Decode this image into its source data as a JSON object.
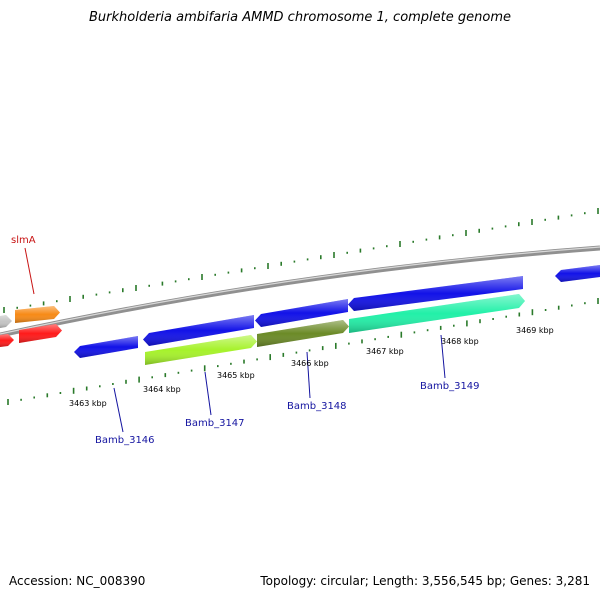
{
  "title": "Burkholderia ambifaria AMMD chromosome 1, complete genome",
  "footer": {
    "accession": "Accession: NC_008390",
    "summary": "Topology: circular; Length: 3,556,545 bp; Genes: 3,281"
  },
  "colors": {
    "forward_gene": "#1212e8",
    "reverse_gene": "#1212e8",
    "Bamb_3147": "#a6f22b",
    "Bamb_3148": "#6b8a27",
    "Bamb_3149": "#22f0a8",
    "slmA_pair_top": "#f78a16",
    "slmA_pair_bottom": "#ff1a1a",
    "grey_gene": "#c4c4c4",
    "backbone": "#909090",
    "gc_ticks": "#2a7a2a",
    "gene_label_blue": "#1414a0",
    "gene_label_red": "#c81414"
  },
  "position_ticks": [
    {
      "label": "3463 kbp"
    },
    {
      "label": "3464 kbp"
    },
    {
      "label": "3465 kbp"
    },
    {
      "label": "3466 kbp"
    },
    {
      "label": "3467 kbp"
    },
    {
      "label": "3468 kbp"
    },
    {
      "label": "3469 kbp"
    }
  ],
  "gene_labels": [
    {
      "name": "slmA",
      "color_key": "gene_label_red"
    },
    {
      "name": "Bamb_3146",
      "color_key": "gene_label_blue"
    },
    {
      "name": "Bamb_3147",
      "color_key": "gene_label_blue"
    },
    {
      "name": "Bamb_3148",
      "color_key": "gene_label_blue"
    },
    {
      "name": "Bamb_3149",
      "color_key": "gene_label_blue"
    }
  ]
}
